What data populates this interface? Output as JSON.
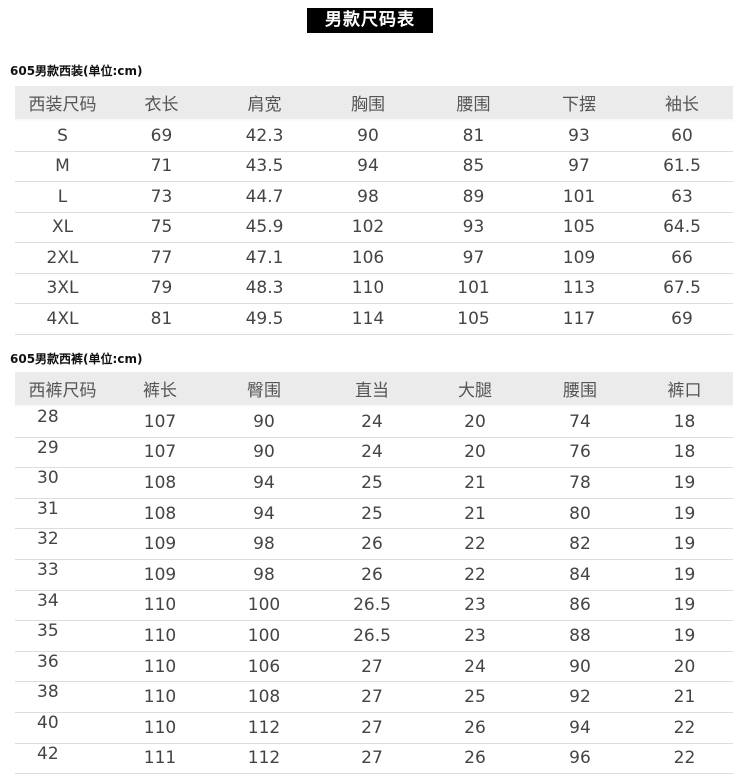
{
  "title": "男款尺码表",
  "suit": {
    "caption": "605男款西装(单位:cm)",
    "headers": [
      "西装尺码",
      "衣长",
      "肩宽",
      "胸围",
      "腰围",
      "下摆",
      "袖长"
    ],
    "rows": [
      [
        "S",
        "69",
        "42.3",
        "90",
        "81",
        "93",
        "60"
      ],
      [
        "M",
        "71",
        "43.5",
        "94",
        "85",
        "97",
        "61.5"
      ],
      [
        "L",
        "73",
        "44.7",
        "98",
        "89",
        "101",
        "63"
      ],
      [
        "XL",
        "75",
        "45.9",
        "102",
        "93",
        "105",
        "64.5"
      ],
      [
        "2XL",
        "77",
        "47.1",
        "106",
        "97",
        "109",
        "66"
      ],
      [
        "3XL",
        "79",
        "48.3",
        "110",
        "101",
        "113",
        "67.5"
      ],
      [
        "4XL",
        "81",
        "49.5",
        "114",
        "105",
        "117",
        "69"
      ]
    ]
  },
  "pants": {
    "caption": "605男款西裤(单位:cm)",
    "headers": [
      "西裤尺码",
      "裤长",
      "臀围",
      "直当",
      "大腿",
      "腰围",
      "裤口"
    ],
    "rows": [
      [
        "28",
        "107",
        "90",
        "24",
        "20",
        "74",
        "18"
      ],
      [
        "29",
        "107",
        "90",
        "24",
        "20",
        "76",
        "18"
      ],
      [
        "30",
        "108",
        "94",
        "25",
        "21",
        "78",
        "19"
      ],
      [
        "31",
        "108",
        "94",
        "25",
        "21",
        "80",
        "19"
      ],
      [
        "32",
        "109",
        "98",
        "26",
        "22",
        "82",
        "19"
      ],
      [
        "33",
        "109",
        "98",
        "26",
        "22",
        "84",
        "19"
      ],
      [
        "34",
        "110",
        "100",
        "26.5",
        "23",
        "86",
        "19"
      ],
      [
        "35",
        "110",
        "100",
        "26.5",
        "23",
        "88",
        "19"
      ],
      [
        "36",
        "110",
        "106",
        "27",
        "24",
        "90",
        "20"
      ],
      [
        "38",
        "110",
        "108",
        "27",
        "25",
        "92",
        "21"
      ],
      [
        "40",
        "110",
        "112",
        "27",
        "26",
        "94",
        "22"
      ],
      [
        "42",
        "111",
        "112",
        "27",
        "26",
        "96",
        "22"
      ]
    ]
  }
}
